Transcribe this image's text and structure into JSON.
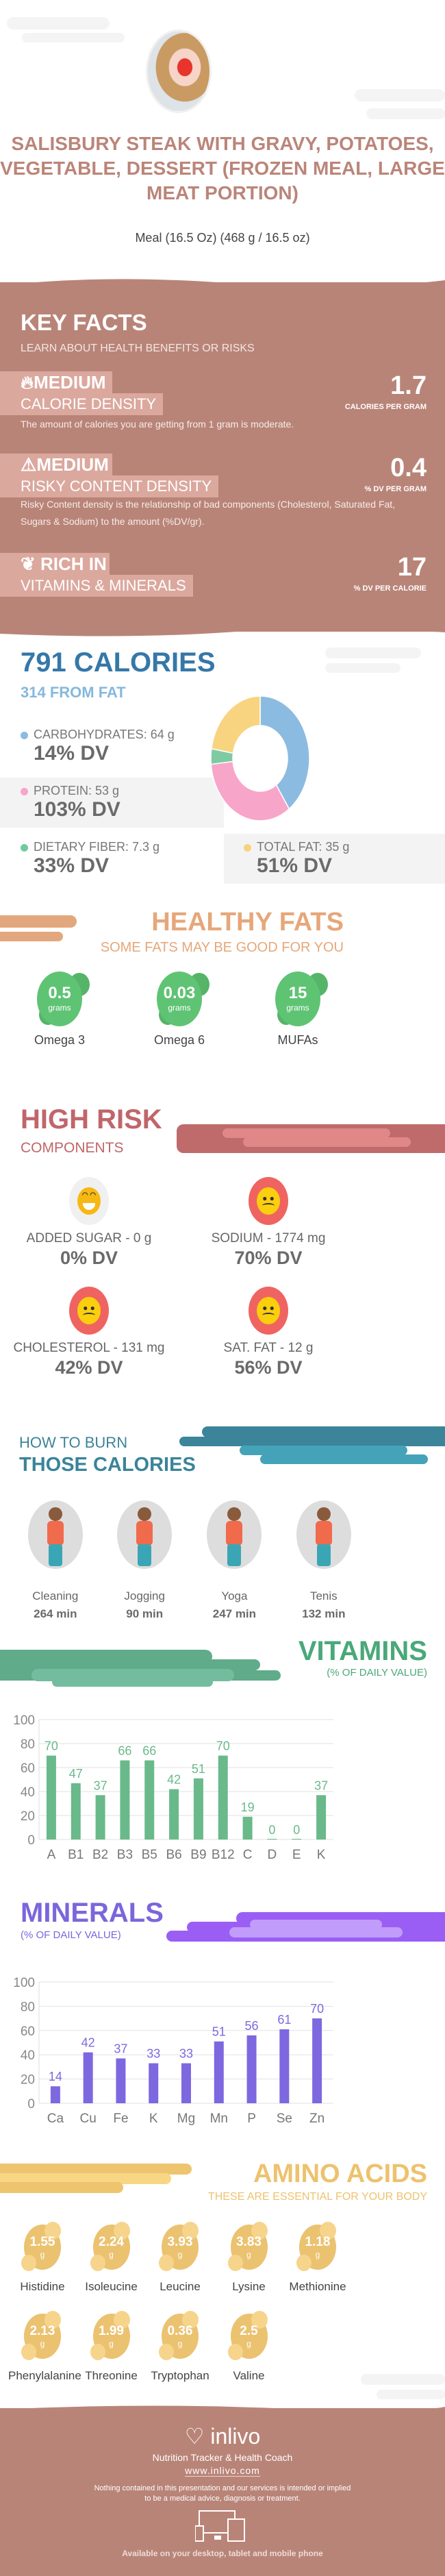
{
  "header": {
    "title": "SALISBURY STEAK WITH GRAVY, POTATOES, VEGETABLE, DESSERT (FROZEN MEAL, LARGE MEAT PORTION)",
    "serving": "Meal (16.5 Oz) (468 g / 16.5 oz)",
    "image": "chef-cutting-pepper-photo"
  },
  "key_facts": {
    "title": "KEY FACTS",
    "subtitle": "LEARN ABOUT HEALTH BENEFITS OR RISKS",
    "items": [
      {
        "icon": "flame-icon",
        "level": "MEDIUM",
        "name": "CALORIE DENSITY",
        "value": "1.7",
        "unit": "CALORIES PER GRAM",
        "desc": "The amount of calories you are getting from 1 gram is moderate."
      },
      {
        "icon": "warning-icon",
        "level": "MEDIUM",
        "name": "RISKY CONTENT DENSITY",
        "value": "0.4",
        "unit": "% DV PER GRAM",
        "desc": "Risky Content density is the relationship of bad components (Cholesterol, Saturated Fat, Sugars & Sodium) to the amount (%DV/gr)."
      },
      {
        "icon": "leaf-icon",
        "level": "RICH  IN",
        "name": "VITAMINS & MINERALS",
        "value": "17",
        "unit": "% DV PER CALORIE"
      }
    ]
  },
  "calories": {
    "title": "791 CALORIES",
    "from_fat": "314 FROM FAT",
    "macros": [
      {
        "label": "CARBOHYDRATES: 64 g",
        "dv": "14% DV",
        "color": "#8bbbe0"
      },
      {
        "label": "PROTEIN: 53 g",
        "dv": "103% DV",
        "color": "#f7a5c8"
      },
      {
        "label": "DIETARY FIBER: 7.3 g",
        "dv": "33% DV",
        "color": "#6fcb9f"
      },
      {
        "label": "TOTAL FAT: 35 g",
        "dv": "51% DV",
        "color": "#f8d27d"
      }
    ]
  },
  "chart_data": [
    {
      "type": "pie",
      "variant": "donut",
      "categories": [
        "Carbohydrates",
        "Protein",
        "Dietary Fiber",
        "Total Fat"
      ],
      "values": [
        40,
        33.5,
        4,
        22.5
      ],
      "colors": [
        "#8bbbe0",
        "#f7a5c8",
        "#7ecba3",
        "#f8d480"
      ]
    },
    {
      "type": "bar",
      "title": "VITAMINS",
      "subtitle": "(% OF DAILY VALUE)",
      "categories": [
        "A",
        "B1",
        "B2",
        "B3",
        "B5",
        "B6",
        "B9",
        "B12",
        "C",
        "D",
        "E",
        "K"
      ],
      "values": [
        70,
        47,
        37,
        66,
        66,
        42,
        51,
        70,
        19,
        0,
        0,
        37
      ],
      "ylim": [
        0,
        100
      ],
      "yticks": [
        0,
        20,
        40,
        60,
        80,
        100
      ],
      "grid": true,
      "color": "#6ab98a"
    },
    {
      "type": "bar",
      "title": "MINERALS",
      "subtitle": "(% OF DAILY VALUE)",
      "categories": [
        "Ca",
        "Cu",
        "Fe",
        "K",
        "Mg",
        "Mn",
        "P",
        "Se",
        "Zn"
      ],
      "values": [
        14,
        42,
        37,
        33,
        33,
        51,
        56,
        61,
        70
      ],
      "ylim": [
        0,
        100
      ],
      "yticks": [
        0,
        20,
        40,
        60,
        80,
        100
      ],
      "grid": true,
      "color": "#7d68e0"
    }
  ],
  "healthy_fats": {
    "title": "HEALTHY FATS",
    "subtitle": "SOME FATS MAY BE GOOD FOR YOU",
    "unit": "grams",
    "items": [
      {
        "value": "0.5",
        "name": "Omega 3"
      },
      {
        "value": "0.03",
        "name": "Omega 6"
      },
      {
        "value": "15",
        "name": "MUFAs"
      }
    ]
  },
  "high_risk": {
    "title": "HIGH RISK",
    "subtitle": "COMPONENTS",
    "items": [
      {
        "label": "ADDED SUGAR - 0 g",
        "dv": "0% DV",
        "icon": "happy-face-icon"
      },
      {
        "label": "SODIUM - 1774 mg",
        "dv": "70% DV",
        "icon": "sad-face-icon"
      },
      {
        "label": "CHOLESTEROL - 131 mg",
        "dv": "42% DV",
        "icon": "sad-face-icon"
      },
      {
        "label": "SAT. FAT - 12 g",
        "dv": "56% DV",
        "icon": "sad-face-icon"
      }
    ]
  },
  "burn": {
    "title_line1": "HOW TO BURN",
    "title_line2": "THOSE CALORIES",
    "items": [
      {
        "name": "Cleaning",
        "time": "264 min"
      },
      {
        "name": "Jogging",
        "time": "90 min"
      },
      {
        "name": "Yoga",
        "time": "247 min"
      },
      {
        "name": "Tenis",
        "time": "132 min"
      }
    ]
  },
  "amino": {
    "title": "AMINO ACIDS",
    "subtitle": "THESE ARE ESSENTIAL FOR YOUR BODY",
    "unit": "g",
    "items": [
      {
        "value": "1.55",
        "name": "Histidine"
      },
      {
        "value": "2.24",
        "name": "Isoleucine"
      },
      {
        "value": "3.93",
        "name": "Leucine"
      },
      {
        "value": "3.83",
        "name": "Lysine"
      },
      {
        "value": "1.18",
        "name": "Methionine"
      },
      {
        "value": "2.13",
        "name": "Phenylalanine"
      },
      {
        "value": "1.99",
        "name": "Threonine"
      },
      {
        "value": "0.36",
        "name": "Tryptophan"
      },
      {
        "value": "2.5",
        "name": "Valine"
      }
    ]
  },
  "footer": {
    "brand": "inlivo",
    "tagline": "Nutrition Tracker & Health Coach",
    "url": "www.inlivo.com",
    "disclaimer_1": "Nothing contained in this presentation and our services is intended or implied",
    "disclaimer_2": "to be a medical advice, diagnosis or treatment.",
    "available": "Available on your desktop, tablet and mobile phone"
  }
}
